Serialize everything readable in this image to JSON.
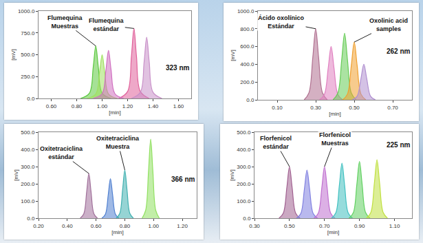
{
  "chart_data": [
    {
      "type": "area",
      "x_label": "[min]",
      "y_label": "[mV]",
      "grid": false,
      "annotations": [
        "Flumequina Muestras",
        "Flumequina estándar",
        "323 nm"
      ],
      "xlim": [
        0.5,
        1.7
      ],
      "xticks": [
        {
          "value": 0.6,
          "label": "0.60"
        },
        {
          "value": 0.8,
          "label": "0.80"
        },
        {
          "value": 1.0,
          "label": "1.00"
        },
        {
          "value": 1.2,
          "label": "1.20"
        },
        {
          "value": 1.4,
          "label": "1.40"
        },
        {
          "value": 1.6,
          "label": "1.60"
        }
      ],
      "ylim": [
        0,
        1000
      ],
      "yticks": [
        {
          "value": 0,
          "label": "0.0"
        },
        {
          "value": 250,
          "label": "250.0"
        },
        {
          "value": 500,
          "label": "500.0"
        },
        {
          "value": 750,
          "label": "750.0"
        },
        {
          "value": 1000,
          "label": "1000.0"
        }
      ],
      "series": [
        {
          "color": "#e0609a",
          "x": [
            1.13,
            1.2,
            1.23,
            1.25,
            1.27,
            1.3,
            1.37
          ],
          "values": [
            0,
            80,
            480,
            800,
            480,
            80,
            0
          ]
        },
        {
          "color": "#c890c8",
          "x": [
            1.23,
            1.3,
            1.33,
            1.35,
            1.37,
            1.4,
            1.47
          ],
          "values": [
            0,
            70,
            420,
            700,
            420,
            70,
            0
          ]
        },
        {
          "color": "#5cc840",
          "x": [
            0.83,
            0.9,
            0.93,
            0.95,
            0.97,
            1.0,
            1.07
          ],
          "values": [
            0,
            60,
            360,
            600,
            360,
            60,
            0
          ]
        },
        {
          "color": "#a0e060",
          "x": [
            0.88,
            0.95,
            0.98,
            1.0,
            1.02,
            1.05,
            1.12
          ],
          "values": [
            0,
            50,
            300,
            500,
            300,
            50,
            0
          ]
        },
        {
          "color": "#d070c0",
          "x": [
            0.93,
            1.0,
            1.03,
            1.05,
            1.07,
            1.1,
            1.17
          ],
          "values": [
            0,
            55,
            330,
            550,
            330,
            55,
            0
          ]
        }
      ]
    },
    {
      "type": "area",
      "x_label": "[min]",
      "y_label": "[mV]",
      "grid": false,
      "annotations": [
        "Ácido oxolínico Estándar",
        "Oxolinic acid samples",
        "262 nm"
      ],
      "xlim": [
        0.0,
        0.8
      ],
      "xticks": [
        {
          "value": 0.1,
          "label": "0.10"
        },
        {
          "value": 0.3,
          "label": "0.30"
        },
        {
          "value": 0.5,
          "label": "0.50"
        },
        {
          "value": 0.7,
          "label": "0.70"
        }
      ],
      "ylim": [
        0,
        1000
      ],
      "yticks": [
        {
          "value": 0,
          "label": "0.0"
        },
        {
          "value": 200,
          "label": "200.0"
        },
        {
          "value": 400,
          "label": "400.0"
        },
        {
          "value": 600,
          "label": "600.0"
        },
        {
          "value": 800,
          "label": "800.0"
        },
        {
          "value": 1000,
          "label": "1000.0"
        }
      ],
      "series": [
        {
          "color": "#b07090",
          "x": [
            0.24,
            0.265,
            0.285,
            0.3,
            0.315,
            0.335,
            0.36
          ],
          "values": [
            0,
            80,
            480,
            800,
            480,
            80,
            0
          ]
        },
        {
          "color": "#e080c0",
          "x": [
            0.32,
            0.345,
            0.365,
            0.38,
            0.395,
            0.415,
            0.44
          ],
          "values": [
            0,
            60,
            360,
            600,
            360,
            60,
            0
          ]
        },
        {
          "color": "#66cc55",
          "x": [
            0.39,
            0.415,
            0.435,
            0.45,
            0.465,
            0.485,
            0.51
          ],
          "values": [
            0,
            75,
            450,
            750,
            450,
            75,
            0
          ]
        },
        {
          "color": "#f0a030",
          "x": [
            0.44,
            0.465,
            0.485,
            0.5,
            0.515,
            0.535,
            0.56
          ],
          "values": [
            0,
            65,
            390,
            650,
            390,
            65,
            0
          ]
        },
        {
          "color": "#b090d0",
          "x": [
            0.49,
            0.515,
            0.535,
            0.55,
            0.565,
            0.585,
            0.61
          ],
          "values": [
            0,
            40,
            240,
            400,
            240,
            40,
            0
          ]
        }
      ]
    },
    {
      "type": "area",
      "x_label": "[min]",
      "y_label": "[mV]",
      "grid": false,
      "annotations": [
        "Oxitetraciclina estándar",
        "Oxitetraciclina Muestra",
        "366 nm"
      ],
      "xlim": [
        0.2,
        1.3
      ],
      "xticks": [
        {
          "value": 0.2,
          "label": "0.20"
        },
        {
          "value": 0.4,
          "label": "0.40"
        },
        {
          "value": 0.6,
          "label": "0.60"
        },
        {
          "value": 0.8,
          "label": "0.80"
        },
        {
          "value": 1.0,
          "label": "1.00"
        },
        {
          "value": 1.2,
          "label": "1.20"
        }
      ],
      "ylim": [
        0,
        500
      ],
      "yticks": [
        {
          "value": 0,
          "label": "0.0"
        },
        {
          "value": 100,
          "label": "100.0"
        },
        {
          "value": 200,
          "label": "200.0"
        },
        {
          "value": 300,
          "label": "300.0"
        },
        {
          "value": 400,
          "label": "400.0"
        },
        {
          "value": 500,
          "label": "500.0"
        }
      ],
      "series": [
        {
          "color": "#a0709a",
          "x": [
            0.49,
            0.515,
            0.535,
            0.55,
            0.565,
            0.585,
            0.61
          ],
          "values": [
            0,
            26,
            156,
            260,
            156,
            26,
            0
          ]
        },
        {
          "color": "#5080d0",
          "x": [
            0.64,
            0.665,
            0.685,
            0.7,
            0.715,
            0.735,
            0.76
          ],
          "values": [
            0,
            23,
            138,
            230,
            138,
            23,
            0
          ]
        },
        {
          "color": "#40b0b0",
          "x": [
            0.74,
            0.765,
            0.785,
            0.8,
            0.815,
            0.835,
            0.86
          ],
          "values": [
            0,
            28,
            168,
            280,
            168,
            28,
            0
          ]
        },
        {
          "color": "#90e060",
          "x": [
            0.92,
            0.945,
            0.965,
            0.98,
            0.995,
            1.015,
            1.04
          ],
          "values": [
            0,
            46,
            276,
            460,
            276,
            46,
            0
          ]
        }
      ]
    },
    {
      "type": "area",
      "x_label": "[min]",
      "y_label": "[mV]",
      "grid": false,
      "annotations": [
        "Florfenicol estándar",
        "Florfenicol Muestras",
        "225 nm"
      ],
      "xlim": [
        0.3,
        1.2
      ],
      "xticks": [
        {
          "value": 0.3,
          "label": "0.30"
        },
        {
          "value": 0.5,
          "label": "0.50"
        },
        {
          "value": 0.7,
          "label": "0.70"
        },
        {
          "value": 0.9,
          "label": "0.90"
        },
        {
          "value": 1.1,
          "label": "1.10"
        }
      ],
      "ylim": [
        0,
        500
      ],
      "yticks": [
        {
          "value": 0,
          "label": "0.0"
        },
        {
          "value": 100,
          "label": "100.0"
        },
        {
          "value": 200,
          "label": "200.0"
        },
        {
          "value": 300,
          "label": "300.0"
        },
        {
          "value": 400,
          "label": "400.0"
        },
        {
          "value": 500,
          "label": "500.0"
        }
      ],
      "series": [
        {
          "color": "#a06090",
          "x": [
            0.44,
            0.465,
            0.485,
            0.5,
            0.515,
            0.535,
            0.56
          ],
          "values": [
            0,
            30,
            180,
            300,
            180,
            30,
            0
          ]
        },
        {
          "color": "#8080e0",
          "x": [
            0.54,
            0.565,
            0.585,
            0.6,
            0.615,
            0.635,
            0.66
          ],
          "values": [
            0,
            28,
            168,
            280,
            168,
            28,
            0
          ]
        },
        {
          "color": "#c070d0",
          "x": [
            0.64,
            0.665,
            0.685,
            0.7,
            0.715,
            0.735,
            0.76
          ],
          "values": [
            0,
            30,
            180,
            300,
            180,
            30,
            0
          ]
        },
        {
          "color": "#40c0c0",
          "x": [
            0.74,
            0.765,
            0.785,
            0.8,
            0.815,
            0.835,
            0.86
          ],
          "values": [
            0,
            32,
            192,
            320,
            192,
            32,
            0
          ]
        },
        {
          "color": "#60d060",
          "x": [
            0.84,
            0.865,
            0.885,
            0.9,
            0.915,
            0.935,
            0.96
          ],
          "values": [
            0,
            33,
            198,
            330,
            198,
            33,
            0
          ]
        },
        {
          "color": "#c0e040",
          "x": [
            0.94,
            0.965,
            0.985,
            1.0,
            1.015,
            1.035,
            1.06
          ],
          "values": [
            0,
            34,
            204,
            340,
            204,
            34,
            0
          ]
        }
      ]
    }
  ]
}
